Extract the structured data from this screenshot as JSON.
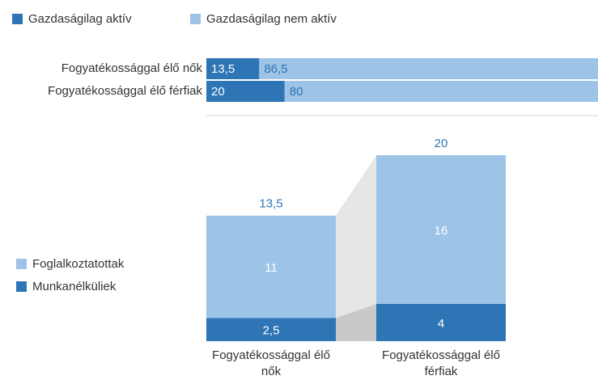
{
  "chart_data": [
    {
      "type": "hbar_stacked",
      "categories": [
        "Fogyatékossággal élő nők",
        "Fogyatékossággal élő férfiak"
      ],
      "xlim": [
        0,
        100
      ],
      "legend": "top-left",
      "series": [
        {
          "name": "Gazdaságilag aktív",
          "color": "#2e75b6",
          "values": [
            13.5,
            20
          ],
          "value_labels": [
            "13,5",
            "20"
          ]
        },
        {
          "name": "Gazdaságilag nem aktív",
          "color": "#9dc3e6",
          "values": [
            86.5,
            80
          ],
          "value_labels": [
            "86,5",
            "80"
          ]
        }
      ]
    },
    {
      "type": "bar_stacked",
      "categories": [
        "Fogyatékossággal élő nők",
        "Fogyatékossággal élő férfiak"
      ],
      "ylim": [
        0,
        20
      ],
      "legend": "left",
      "series": [
        {
          "name": "Munkanélküliek",
          "color": "#2e75b6",
          "values": [
            2.5,
            4
          ],
          "value_labels": [
            "2,5",
            "4"
          ]
        },
        {
          "name": "Foglalkoztatottak",
          "color": "#9dc3e6",
          "values": [
            11,
            16
          ],
          "value_labels": [
            "11",
            "16"
          ]
        }
      ],
      "totals": [
        13.5,
        20
      ],
      "total_labels": [
        "13,5",
        "20"
      ]
    }
  ]
}
